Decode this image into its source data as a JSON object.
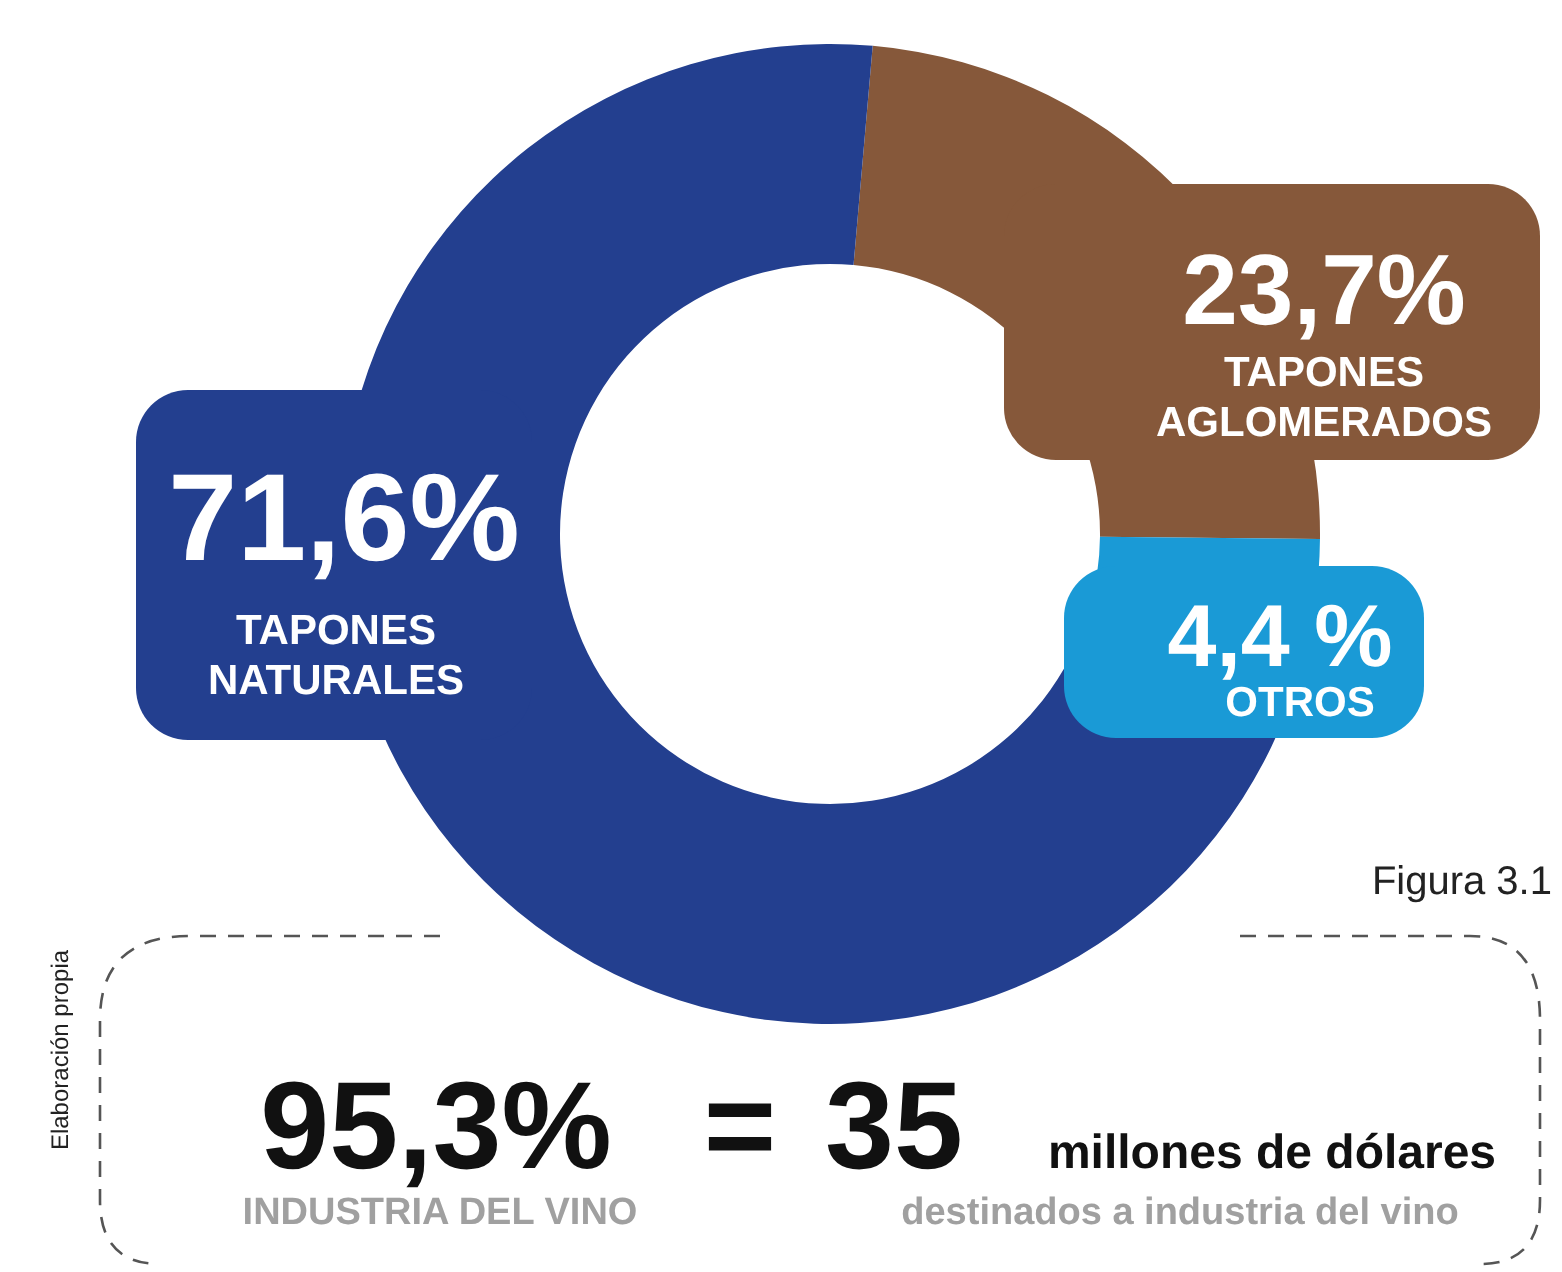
{
  "chart_data": {
    "type": "donut",
    "categories": [
      "TAPONES AGLOMERADOS",
      "OTROS",
      "TAPONES NATURALES"
    ],
    "values": [
      23.7,
      4.4,
      71.6
    ],
    "colors": [
      "#86583a",
      "#1a9ad6",
      "#233f8f"
    ],
    "value_labels": [
      "23,7%",
      "4,4 %",
      "71,6%"
    ],
    "legend": false,
    "annotations": [
      "Figura 3.1",
      "Elaboración propia",
      "95,3%",
      "INDUSTRIA DEL VINO",
      "=",
      "35",
      "millones de dólares",
      "destinados a industria del vino"
    ]
  }
}
